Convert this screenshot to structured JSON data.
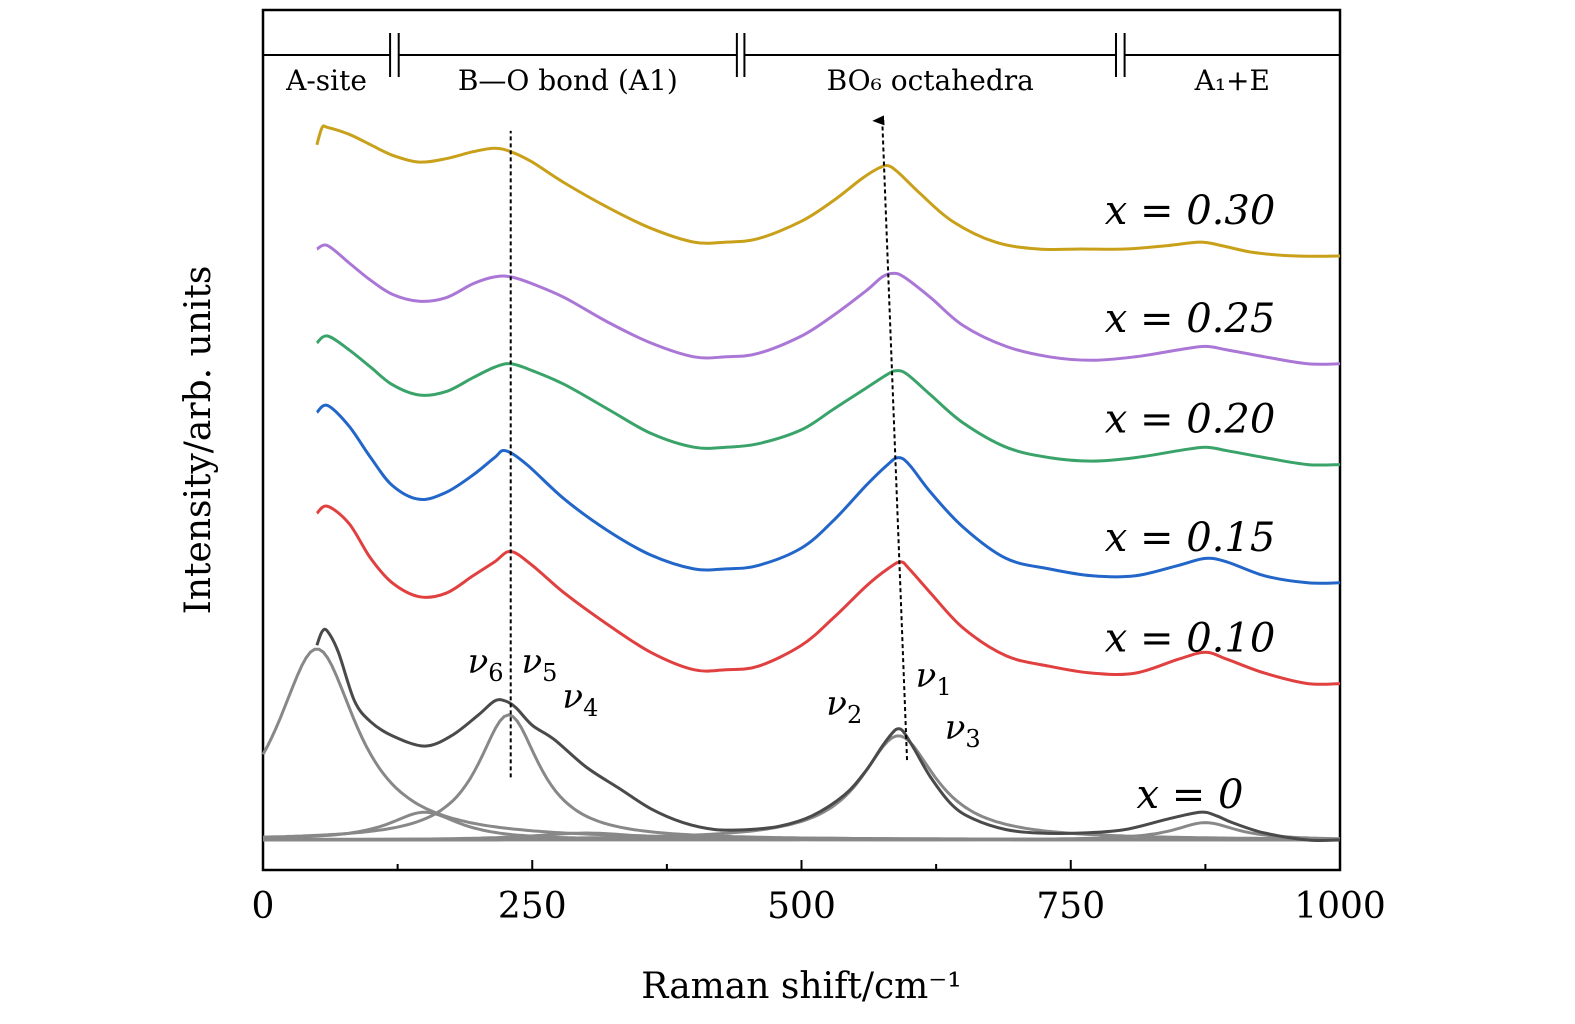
{
  "chart_data": {
    "type": "line",
    "xlabel": "Raman shift/cm⁻¹",
    "ylabel": "Intensity/arb. units",
    "xlim": [
      0,
      1000
    ],
    "xticks": [
      0,
      250,
      500,
      750,
      1000
    ],
    "grid": false,
    "regions": [
      {
        "label": "A-site",
        "from": 0,
        "to": 118
      },
      {
        "label": "B—O bond (A1)",
        "from": 126,
        "to": 440
      },
      {
        "label": "BO₆ octahedra",
        "from": 447,
        "to": 792
      },
      {
        "label": "A₁+E",
        "from": 800,
        "to": 1000
      }
    ],
    "series": [
      {
        "name": "x = 0",
        "color": "#4a4a4a",
        "x": [
          50,
          55,
          60,
          70,
          85,
          100,
          120,
          150,
          175,
          200,
          215,
          225,
          235,
          250,
          270,
          300,
          330,
          360,
          390,
          420,
          450,
          480,
          510,
          540,
          560,
          575,
          585,
          590,
          595,
          605,
          620,
          640,
          660,
          690,
          720,
          760,
          800,
          840,
          870,
          885,
          900,
          930,
          970,
          1000
        ],
        "y": [
          0.56,
          0.6,
          0.6,
          0.54,
          0.4,
          0.34,
          0.3,
          0.27,
          0.3,
          0.36,
          0.4,
          0.4,
          0.38,
          0.33,
          0.29,
          0.21,
          0.15,
          0.09,
          0.05,
          0.03,
          0.03,
          0.04,
          0.07,
          0.13,
          0.2,
          0.27,
          0.31,
          0.32,
          0.31,
          0.26,
          0.18,
          0.1,
          0.06,
          0.03,
          0.02,
          0.02,
          0.03,
          0.06,
          0.08,
          0.07,
          0.05,
          0.02,
          0.0,
          0.0
        ]
      },
      {
        "name": "x = 0.10",
        "color": "#e0403f",
        "x": [
          50,
          60,
          80,
          100,
          120,
          145,
          170,
          195,
          215,
          230,
          250,
          280,
          320,
          360,
          400,
          430,
          460,
          500,
          530,
          560,
          580,
          592,
          600,
          620,
          650,
          690,
          730,
          770,
          810,
          850,
          875,
          895,
          930,
          970,
          1000
        ],
        "y": [
          0.94,
          0.96,
          0.91,
          0.81,
          0.74,
          0.7,
          0.71,
          0.76,
          0.8,
          0.83,
          0.79,
          0.71,
          0.62,
          0.54,
          0.49,
          0.49,
          0.5,
          0.56,
          0.64,
          0.73,
          0.78,
          0.8,
          0.78,
          0.71,
          0.61,
          0.53,
          0.5,
          0.48,
          0.48,
          0.52,
          0.54,
          0.52,
          0.48,
          0.45,
          0.45
        ]
      },
      {
        "name": "x = 0.15",
        "color": "#2166c8",
        "x": [
          50,
          60,
          80,
          100,
          120,
          145,
          170,
          195,
          215,
          225,
          245,
          280,
          320,
          360,
          400,
          430,
          460,
          500,
          530,
          560,
          580,
          590,
          600,
          620,
          650,
          690,
          730,
          770,
          810,
          850,
          875,
          895,
          930,
          970,
          1000
        ],
        "y": [
          1.23,
          1.25,
          1.19,
          1.1,
          1.02,
          0.98,
          1.0,
          1.05,
          1.1,
          1.12,
          1.08,
          0.98,
          0.89,
          0.82,
          0.78,
          0.78,
          0.79,
          0.84,
          0.92,
          1.02,
          1.08,
          1.1,
          1.08,
          1.0,
          0.9,
          0.81,
          0.78,
          0.76,
          0.76,
          0.79,
          0.81,
          0.8,
          0.76,
          0.74,
          0.74
        ]
      },
      {
        "name": "x = 0.20",
        "color": "#3aa36a",
        "x": [
          50,
          60,
          80,
          100,
          120,
          145,
          170,
          195,
          215,
          230,
          250,
          280,
          320,
          360,
          400,
          430,
          460,
          500,
          530,
          560,
          580,
          588,
          598,
          620,
          650,
          690,
          730,
          770,
          810,
          850,
          875,
          895,
          930,
          970,
          1000
        ],
        "y": [
          1.43,
          1.45,
          1.41,
          1.36,
          1.31,
          1.28,
          1.29,
          1.33,
          1.36,
          1.37,
          1.35,
          1.31,
          1.24,
          1.17,
          1.13,
          1.13,
          1.14,
          1.18,
          1.24,
          1.3,
          1.34,
          1.35,
          1.34,
          1.28,
          1.2,
          1.13,
          1.1,
          1.09,
          1.1,
          1.12,
          1.13,
          1.12,
          1.1,
          1.08,
          1.08
        ]
      },
      {
        "name": "x = 0.25",
        "color": "#aa77d6",
        "x": [
          50,
          60,
          80,
          100,
          120,
          145,
          170,
          195,
          215,
          230,
          250,
          280,
          320,
          360,
          400,
          430,
          460,
          500,
          530,
          560,
          575,
          585,
          595,
          620,
          650,
          690,
          730,
          770,
          810,
          850,
          875,
          895,
          930,
          970,
          1000
        ],
        "y": [
          1.7,
          1.71,
          1.66,
          1.61,
          1.57,
          1.55,
          1.56,
          1.6,
          1.62,
          1.62,
          1.6,
          1.56,
          1.49,
          1.43,
          1.39,
          1.39,
          1.4,
          1.45,
          1.51,
          1.58,
          1.62,
          1.63,
          1.62,
          1.56,
          1.48,
          1.42,
          1.39,
          1.38,
          1.39,
          1.41,
          1.42,
          1.41,
          1.39,
          1.37,
          1.37
        ]
      },
      {
        "name": "x = 0.30",
        "color": "#c9a01a",
        "x": [
          50,
          55,
          60,
          80,
          100,
          120,
          145,
          170,
          195,
          215,
          230,
          250,
          280,
          320,
          360,
          400,
          430,
          460,
          500,
          530,
          555,
          570,
          580,
          590,
          610,
          640,
          680,
          720,
          760,
          800,
          840,
          870,
          890,
          920,
          960,
          1000
        ],
        "y": [
          2.0,
          2.05,
          2.05,
          2.03,
          2.0,
          1.97,
          1.95,
          1.96,
          1.98,
          1.99,
          1.98,
          1.95,
          1.89,
          1.82,
          1.76,
          1.72,
          1.72,
          1.73,
          1.78,
          1.84,
          1.9,
          1.93,
          1.94,
          1.92,
          1.86,
          1.78,
          1.72,
          1.7,
          1.7,
          1.7,
          1.71,
          1.72,
          1.71,
          1.69,
          1.68,
          1.68
        ]
      }
    ],
    "fit_peaks": {
      "color": "#888888",
      "peaks": [
        {
          "center": 50,
          "height": 0.55,
          "width": 45
        },
        {
          "center": 228,
          "height": 0.36,
          "width": 35
        },
        {
          "center": 150,
          "height": 0.08,
          "width": 40
        },
        {
          "center": 300,
          "height": 0.02,
          "width": 60
        },
        {
          "center": 590,
          "height": 0.3,
          "width": 42
        },
        {
          "center": 875,
          "height": 0.05,
          "width": 35
        }
      ]
    },
    "mode_labels": [
      {
        "text": "ν",
        "sub": "6",
        "x": 190,
        "y": 0.48
      },
      {
        "text": "ν",
        "sub": "5",
        "x": 240,
        "y": 0.48
      },
      {
        "text": "ν",
        "sub": "4",
        "x": 278,
        "y": 0.38
      },
      {
        "text": "ν",
        "sub": "2",
        "x": 523,
        "y": 0.36
      },
      {
        "text": "ν",
        "sub": "1",
        "x": 606,
        "y": 0.44
      },
      {
        "text": "ν",
        "sub": "3",
        "x": 633,
        "y": 0.29
      }
    ],
    "guide_lines": [
      {
        "style": "dashed",
        "x1": 230,
        "y1": 0.18,
        "x2": 230,
        "y2": 2.04,
        "arrow": false
      },
      {
        "style": "dashed",
        "x1": 598,
        "y1": 0.23,
        "x2": 575,
        "y2": 2.07,
        "arrow": true
      }
    ]
  }
}
